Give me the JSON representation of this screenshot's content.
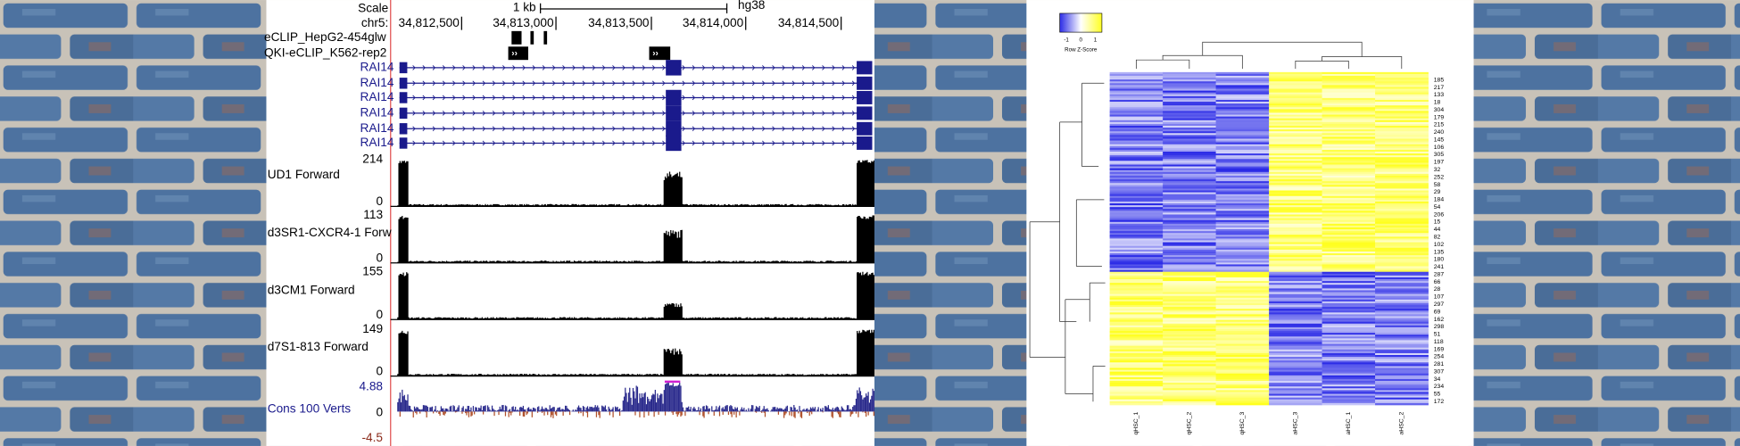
{
  "genome_browser": {
    "scale_label": "Scale",
    "scale_size": "1 kb",
    "assembly": "hg38",
    "chrom": "chr5:",
    "positions": [
      "34,812,500",
      "34,813,000",
      "34,813,500",
      "34,814,000",
      "34,814,500"
    ],
    "annotation_tracks": [
      "eCLIP_HepG2-454glw",
      "QKI-eCLIP_K562-rep2"
    ],
    "gene_tracks": [
      "RAI14",
      "RAI14",
      "RAI14",
      "RAI14",
      "RAI14",
      "RAI14"
    ],
    "signal_tracks": [
      {
        "label": "UD1 Forward",
        "max": "214",
        "min": "0"
      },
      {
        "label": "d3SR1-CXCR4-1 Forw",
        "max": "113",
        "min": "0"
      },
      {
        "label": "d3CM1 Forward",
        "max": "155",
        "min": "0"
      },
      {
        "label": "d7S1-813 Forward",
        "max": "149",
        "min": "0"
      }
    ],
    "conservation": {
      "label": "Cons 100 Verts",
      "max": "4.88",
      "zero": "0",
      "min": "-4.5"
    }
  },
  "heatmap": {
    "key_ticks": [
      "-1",
      "0",
      "1"
    ],
    "key_label": "Row Z-Score",
    "columns": [
      "qHSC_1",
      "qHSC_2",
      "qHSC_3",
      "aHSC_3",
      "aHSC_1",
      "aHSC_2"
    ],
    "rows": [
      "185",
      "217",
      "133",
      "18",
      "304",
      "179",
      "215",
      "240",
      "145",
      "106",
      "305",
      "197",
      "32",
      "252",
      "58",
      "29",
      "184",
      "54",
      "206",
      "15",
      "44",
      "82",
      "102",
      "135",
      "180",
      "241",
      "287",
      "66",
      "28",
      "107",
      "297",
      "69",
      "162",
      "298",
      "51",
      "118",
      "169",
      "254",
      "281",
      "307",
      "34",
      "234",
      "55",
      "172"
    ]
  }
}
